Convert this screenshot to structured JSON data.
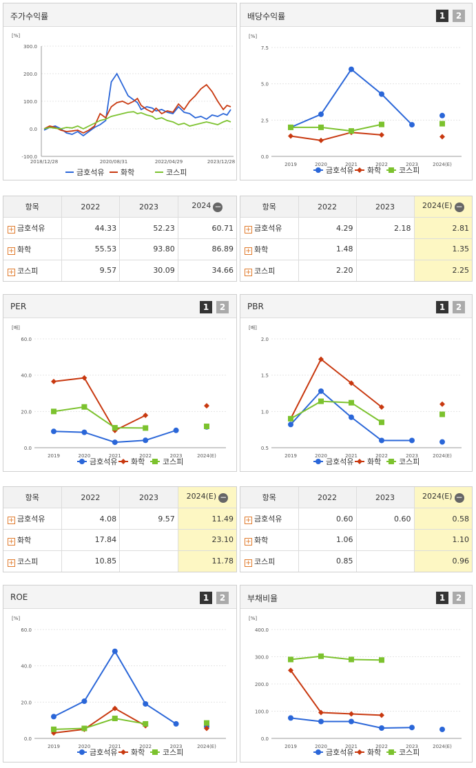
{
  "colors": {
    "kumho": "#2a66d8",
    "chem": "#c8380f",
    "kospi": "#7cc22e"
  },
  "panels": {
    "price": {
      "title": "주가수익률"
    },
    "div": {
      "title": "배당수익률",
      "pages": [
        "1",
        "2"
      ]
    },
    "per": {
      "title": "PER",
      "pages": [
        "1",
        "2"
      ]
    },
    "pbr": {
      "title": "PBR",
      "pages": [
        "1",
        "2"
      ]
    },
    "roe": {
      "title": "ROE",
      "pages": [
        "1",
        "2"
      ]
    },
    "debt": {
      "title": "부채비율",
      "pages": [
        "1",
        "2"
      ]
    }
  },
  "legend": [
    "금호석유",
    "화학",
    "코스피"
  ],
  "tables": {
    "price": {
      "header": [
        "항목",
        "2022",
        "2023",
        "2024"
      ],
      "rows": [
        {
          "label": "금호석유",
          "values": [
            "44.33",
            "52.23",
            "60.71"
          ]
        },
        {
          "label": "화학",
          "values": [
            "55.53",
            "93.80",
            "86.89"
          ]
        },
        {
          "label": "코스피",
          "values": [
            "9.57",
            "30.09",
            "34.66"
          ]
        }
      ]
    },
    "div": {
      "header": [
        "항목",
        "2022",
        "2023",
        "2024(E)"
      ],
      "rows": [
        {
          "label": "금호석유",
          "values": [
            "4.29",
            "2.18",
            "2.81"
          ]
        },
        {
          "label": "화학",
          "values": [
            "1.48",
            "",
            "1.35"
          ]
        },
        {
          "label": "코스피",
          "values": [
            "2.20",
            "",
            "2.25"
          ]
        }
      ]
    },
    "per": {
      "header": [
        "항목",
        "2022",
        "2023",
        "2024(E)"
      ],
      "rows": [
        {
          "label": "금호석유",
          "values": [
            "4.08",
            "9.57",
            "11.49"
          ]
        },
        {
          "label": "화학",
          "values": [
            "17.84",
            "",
            "23.10"
          ]
        },
        {
          "label": "코스피",
          "values": [
            "10.85",
            "",
            "11.78"
          ]
        }
      ]
    },
    "pbr": {
      "header": [
        "항목",
        "2022",
        "2023",
        "2024(E)"
      ],
      "rows": [
        {
          "label": "금호석유",
          "values": [
            "0.60",
            "0.60",
            "0.58"
          ]
        },
        {
          "label": "화학",
          "values": [
            "1.06",
            "",
            "1.10"
          ]
        },
        {
          "label": "코스피",
          "values": [
            "0.85",
            "",
            "0.96"
          ]
        }
      ]
    }
  },
  "chart_data": [
    {
      "id": "price",
      "type": "line",
      "unit": "[%]",
      "y_ticks": [
        "300.0",
        "200.0",
        "100.0",
        "0.0",
        "-100.0"
      ],
      "ylim": [
        -100,
        300
      ],
      "x_ticks": [
        "2018/12/28",
        "2020/08/31",
        "2022/04/29",
        "2023/12/28"
      ],
      "series": [
        {
          "name": "금호석유",
          "x": [
            0,
            0.03,
            0.06,
            0.09,
            0.12,
            0.15,
            0.18,
            0.21,
            0.24,
            0.27,
            0.3,
            0.33,
            0.36,
            0.39,
            0.42,
            0.45,
            0.48,
            0.5,
            0.52,
            0.55,
            0.58,
            0.6,
            0.63,
            0.66,
            0.69,
            0.72,
            0.75,
            0.78,
            0.81,
            0.84,
            0.87,
            0.9,
            0.93,
            0.96,
            0.98,
            1
          ],
          "y": [
            -5,
            5,
            10,
            0,
            -15,
            -20,
            -10,
            -25,
            -10,
            5,
            15,
            30,
            170,
            200,
            160,
            120,
            105,
            95,
            70,
            80,
            75,
            65,
            70,
            60,
            55,
            80,
            60,
            55,
            40,
            45,
            35,
            50,
            45,
            55,
            50,
            70
          ]
        },
        {
          "name": "화학",
          "x": [
            0,
            0.03,
            0.06,
            0.09,
            0.12,
            0.15,
            0.18,
            0.21,
            0.24,
            0.27,
            0.3,
            0.33,
            0.36,
            0.39,
            0.42,
            0.45,
            0.48,
            0.5,
            0.52,
            0.55,
            0.58,
            0.6,
            0.63,
            0.66,
            0.69,
            0.72,
            0.75,
            0.78,
            0.81,
            0.84,
            0.87,
            0.9,
            0.93,
            0.96,
            0.98,
            1
          ],
          "y": [
            0,
            10,
            5,
            -5,
            -10,
            -8,
            -5,
            -15,
            -5,
            10,
            55,
            40,
            80,
            95,
            100,
            90,
            100,
            110,
            85,
            70,
            60,
            75,
            55,
            65,
            60,
            90,
            70,
            100,
            120,
            145,
            160,
            135,
            100,
            70,
            85,
            80
          ]
        },
        {
          "name": "코스피",
          "x": [
            0,
            0.03,
            0.06,
            0.09,
            0.12,
            0.15,
            0.18,
            0.21,
            0.24,
            0.27,
            0.3,
            0.33,
            0.36,
            0.39,
            0.42,
            0.45,
            0.48,
            0.5,
            0.52,
            0.55,
            0.58,
            0.6,
            0.63,
            0.66,
            0.69,
            0.72,
            0.75,
            0.78,
            0.81,
            0.84,
            0.87,
            0.9,
            0.93,
            0.96,
            0.98,
            1
          ],
          "y": [
            0,
            5,
            2,
            0,
            5,
            3,
            10,
            0,
            10,
            20,
            30,
            35,
            45,
            50,
            55,
            60,
            62,
            55,
            58,
            50,
            45,
            35,
            40,
            30,
            25,
            15,
            20,
            10,
            15,
            20,
            25,
            20,
            15,
            25,
            30,
            25
          ]
        }
      ]
    },
    {
      "id": "div",
      "type": "line",
      "unit": "[%]",
      "y_ticks": [
        "7.5",
        "5.0",
        "2.5",
        "0.0"
      ],
      "ylim": [
        0,
        7.5
      ],
      "categories": [
        "2019",
        "2020",
        "2021",
        "2022",
        "2023",
        "2024(E)"
      ],
      "series": [
        {
          "name": "금호석유",
          "values": [
            2.0,
            2.9,
            6.0,
            4.29,
            2.18,
            2.81
          ],
          "marker": "circle"
        },
        {
          "name": "화학",
          "values": [
            1.4,
            1.1,
            1.65,
            1.48,
            null,
            1.35
          ],
          "marker": "diamond"
        },
        {
          "name": "코스피",
          "values": [
            2.0,
            2.0,
            1.75,
            2.2,
            null,
            2.25
          ],
          "marker": "square"
        }
      ]
    },
    {
      "id": "per",
      "type": "line",
      "unit": "[배]",
      "y_ticks": [
        "60.0",
        "40.0",
        "20.0",
        "0.0"
      ],
      "ylim": [
        0,
        60
      ],
      "categories": [
        "2019",
        "2020",
        "2021",
        "2022",
        "2023",
        "2024(E)"
      ],
      "series": [
        {
          "name": "금호석유",
          "values": [
            9.0,
            8.5,
            3.0,
            4.08,
            9.57,
            11.49
          ],
          "marker": "circle"
        },
        {
          "name": "화학",
          "values": [
            36.5,
            38.5,
            9.5,
            17.84,
            null,
            23.1
          ],
          "marker": "diamond"
        },
        {
          "name": "코스피",
          "values": [
            20.0,
            22.5,
            11.0,
            10.85,
            null,
            11.78
          ],
          "marker": "square"
        }
      ]
    },
    {
      "id": "pbr",
      "type": "line",
      "unit": "[배]",
      "y_ticks": [
        "2.0",
        "1.5",
        "1.0",
        "0.5"
      ],
      "ylim": [
        0.5,
        2.0
      ],
      "categories": [
        "2019",
        "2020",
        "2021",
        "2022",
        "2023",
        "2024(E)"
      ],
      "series": [
        {
          "name": "금호석유",
          "values": [
            0.82,
            1.28,
            0.92,
            0.6,
            0.6,
            0.58
          ],
          "marker": "circle"
        },
        {
          "name": "화학",
          "values": [
            0.9,
            1.72,
            1.39,
            1.06,
            null,
            1.1
          ],
          "marker": "diamond"
        },
        {
          "name": "코스피",
          "values": [
            0.9,
            1.14,
            1.12,
            0.85,
            null,
            0.96
          ],
          "marker": "square"
        }
      ]
    },
    {
      "id": "roe",
      "type": "line",
      "unit": "[%]",
      "y_ticks": [
        "60.0",
        "40.0",
        "20.0",
        "0.0"
      ],
      "ylim": [
        0,
        60
      ],
      "categories": [
        "2019",
        "2020",
        "2021",
        "2022",
        "2023",
        "2024(E)"
      ],
      "series": [
        {
          "name": "금호석유",
          "values": [
            12.0,
            20.5,
            48.0,
            19.0,
            8.0,
            6.5
          ],
          "marker": "circle"
        },
        {
          "name": "화학",
          "values": [
            3.0,
            5.0,
            16.5,
            7.0,
            null,
            5.5
          ],
          "marker": "diamond"
        },
        {
          "name": "코스피",
          "values": [
            5.0,
            5.5,
            11.0,
            8.0,
            null,
            8.5
          ],
          "marker": "square"
        }
      ]
    },
    {
      "id": "debt",
      "type": "line",
      "unit": "[%]",
      "y_ticks": [
        "400.0",
        "300.0",
        "200.0",
        "100.0",
        "0.0"
      ],
      "ylim": [
        0,
        400
      ],
      "categories": [
        "2019",
        "2020",
        "2021",
        "2022",
        "2023",
        "2024(E)"
      ],
      "series": [
        {
          "name": "금호석유",
          "values": [
            75,
            62,
            62,
            38,
            40,
            33
          ],
          "marker": "circle"
        },
        {
          "name": "화학",
          "values": [
            250,
            95,
            90,
            85,
            null,
            null
          ],
          "marker": "diamond"
        },
        {
          "name": "코스피",
          "values": [
            290,
            302,
            290,
            288,
            null,
            null
          ],
          "marker": "square"
        }
      ]
    }
  ]
}
